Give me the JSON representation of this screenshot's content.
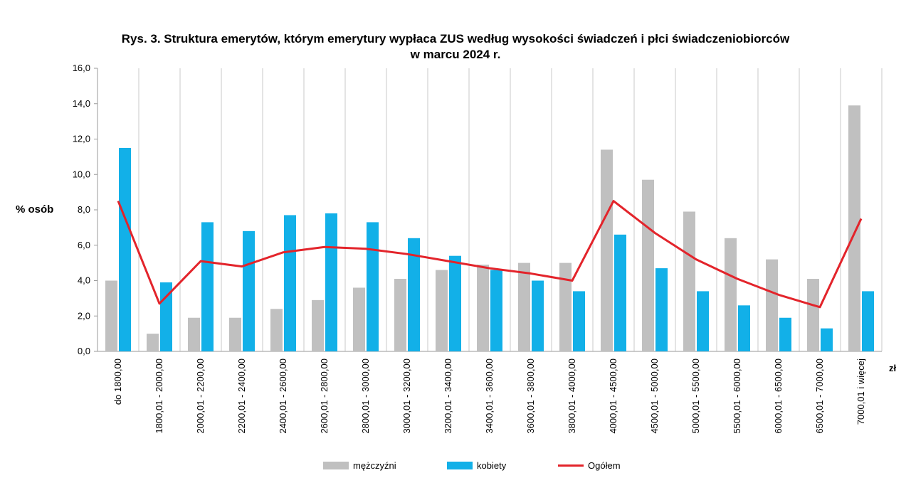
{
  "chart_data": {
    "type": "bar+line",
    "title": "Rys. 3. Struktura emerytów, którym emerytury wypłaca ZUS według wysokości świadczeń i płci świadczeniobiorców",
    "subtitle": "w marcu 2024 r.",
    "ylabel": "% osób",
    "xlabel_unit": "zł",
    "ylim": [
      0,
      16
    ],
    "yticks": [
      "0,0",
      "2,0",
      "4,0",
      "6,0",
      "8,0",
      "10,0",
      "12,0",
      "14,0",
      "16,0"
    ],
    "ytick_values": [
      0,
      2,
      4,
      6,
      8,
      10,
      12,
      14,
      16
    ],
    "grid": "vertical",
    "legend_position": "bottom",
    "categories": [
      "do 1800,00",
      "1800,01 - 2000,00",
      "2000,01 - 2200,00",
      "2200,01 - 2400,00",
      "2400,01 - 2600,00",
      "2600,01 - 2800,00",
      "2800,01 - 3000,00",
      "3000,01 - 3200,00",
      "3200,01 - 3400,00",
      "3400,01 - 3600,00",
      "3600,01 - 3800,00",
      "3800,01 - 4000,00",
      "4000,01 - 4500,00",
      "4500,01 - 5000,00",
      "5000,01 - 5500,00",
      "5500,01 - 6000,00",
      "6000,01 - 6500,00",
      "6500,01 - 7000,00",
      "7000,01 i więcej"
    ],
    "series": [
      {
        "name": "mężczyźni",
        "kind": "bar",
        "color": "#c0c0c0",
        "values": [
          4.0,
          1.0,
          1.9,
          1.9,
          2.4,
          2.9,
          3.6,
          4.1,
          4.6,
          4.9,
          5.0,
          5.0,
          11.4,
          9.7,
          7.9,
          6.4,
          5.2,
          4.1,
          13.9
        ]
      },
      {
        "name": "kobiety",
        "kind": "bar",
        "color": "#12b0e8",
        "values": [
          11.5,
          3.9,
          7.3,
          6.8,
          7.7,
          7.8,
          7.3,
          6.4,
          5.4,
          4.6,
          4.0,
          3.4,
          6.6,
          4.7,
          3.4,
          2.6,
          1.9,
          1.3,
          3.4
        ]
      },
      {
        "name": "Ogółem",
        "kind": "line",
        "color": "#e3242b",
        "values": [
          8.5,
          2.7,
          5.1,
          4.8,
          5.6,
          5.9,
          5.8,
          5.5,
          5.1,
          4.7,
          4.4,
          4.0,
          8.5,
          6.7,
          5.2,
          4.1,
          3.2,
          2.5,
          7.5
        ]
      }
    ]
  }
}
